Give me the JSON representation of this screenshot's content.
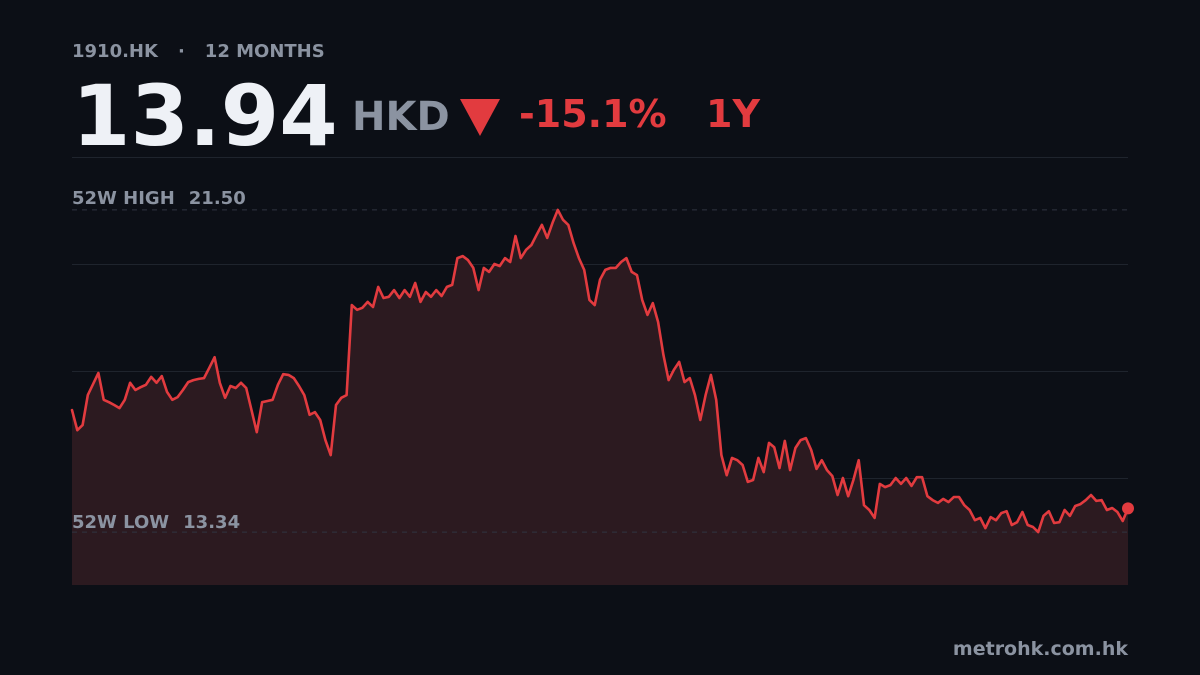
{
  "header": {
    "ticker": "1910.HK",
    "separator": "·",
    "period": "12 MONTHS",
    "price": "13.94",
    "currency": "HKD",
    "change": "-15.1%",
    "range": "1Y"
  },
  "chart_data": {
    "type": "line",
    "color": "#e23b3f",
    "ylim": [
      12.0,
      22.84
    ],
    "high_label": "52W HIGH",
    "high": {
      "value": 21.5,
      "label": "21.50"
    },
    "low_label": "52W LOW",
    "low": 13.34,
    "values": [
      16.43,
      15.92,
      16.05,
      16.81,
      17.09,
      17.37,
      16.69,
      16.63,
      16.56,
      16.48,
      16.69,
      17.12,
      16.94,
      17.01,
      17.07,
      17.27,
      17.12,
      17.29,
      16.89,
      16.69,
      16.76,
      16.94,
      17.14,
      17.19,
      17.22,
      17.24,
      17.5,
      17.77,
      17.12,
      16.74,
      17.04,
      16.99,
      17.12,
      16.99,
      16.43,
      15.87,
      16.63,
      16.66,
      16.69,
      17.07,
      17.34,
      17.32,
      17.24,
      17.04,
      16.81,
      16.31,
      16.38,
      16.18,
      15.67,
      15.29,
      16.56,
      16.74,
      16.81,
      19.09,
      18.97,
      19.02,
      19.17,
      19.04,
      19.55,
      19.27,
      19.3,
      19.47,
      19.27,
      19.47,
      19.3,
      19.65,
      19.17,
      19.42,
      19.3,
      19.47,
      19.32,
      19.55,
      19.6,
      20.28,
      20.33,
      20.23,
      20.03,
      19.47,
      20.03,
      19.93,
      20.13,
      20.08,
      20.28,
      20.18,
      20.84,
      20.28,
      20.49,
      20.61,
      20.87,
      21.12,
      20.79,
      21.17,
      21.5,
      21.25,
      21.12,
      20.66,
      20.28,
      19.98,
      19.22,
      19.09,
      19.73,
      19.98,
      20.03,
      20.03,
      20.18,
      20.28,
      19.93,
      19.85,
      19.22,
      18.84,
      19.14,
      18.66,
      17.83,
      17.19,
      17.45,
      17.65,
      17.14,
      17.24,
      16.81,
      16.18,
      16.81,
      17.32,
      16.69,
      15.29,
      14.78,
      15.22,
      15.16,
      15.04,
      14.61,
      14.66,
      15.22,
      14.86,
      15.6,
      15.49,
      14.96,
      15.65,
      14.91,
      15.47,
      15.67,
      15.72,
      15.42,
      14.94,
      15.16,
      14.91,
      14.76,
      14.28,
      14.71,
      14.25,
      14.66,
      15.16,
      14.02,
      13.9,
      13.7,
      14.56,
      14.48,
      14.53,
      14.71,
      14.56,
      14.71,
      14.51,
      14.73,
      14.73,
      14.25,
      14.15,
      14.08,
      14.18,
      14.1,
      14.23,
      14.23,
      14.02,
      13.9,
      13.64,
      13.7,
      13.44,
      13.72,
      13.64,
      13.82,
      13.87,
      13.52,
      13.59,
      13.85,
      13.52,
      13.47,
      13.34,
      13.75,
      13.87,
      13.57,
      13.59,
      13.9,
      13.75,
      14.0,
      14.05,
      14.15,
      14.28,
      14.13,
      14.15,
      13.9,
      13.95,
      13.85,
      13.62,
      13.94
    ]
  },
  "footer": {
    "source": "metrohk.com.hk"
  }
}
